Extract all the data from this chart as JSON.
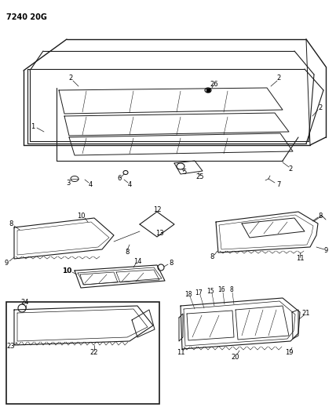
{
  "page_code": "7240 20G",
  "bg": "#ffffff",
  "lc": "#1a1a1a",
  "tc": "#000000",
  "figsize": [
    4.28,
    5.33
  ],
  "dpi": 100
}
